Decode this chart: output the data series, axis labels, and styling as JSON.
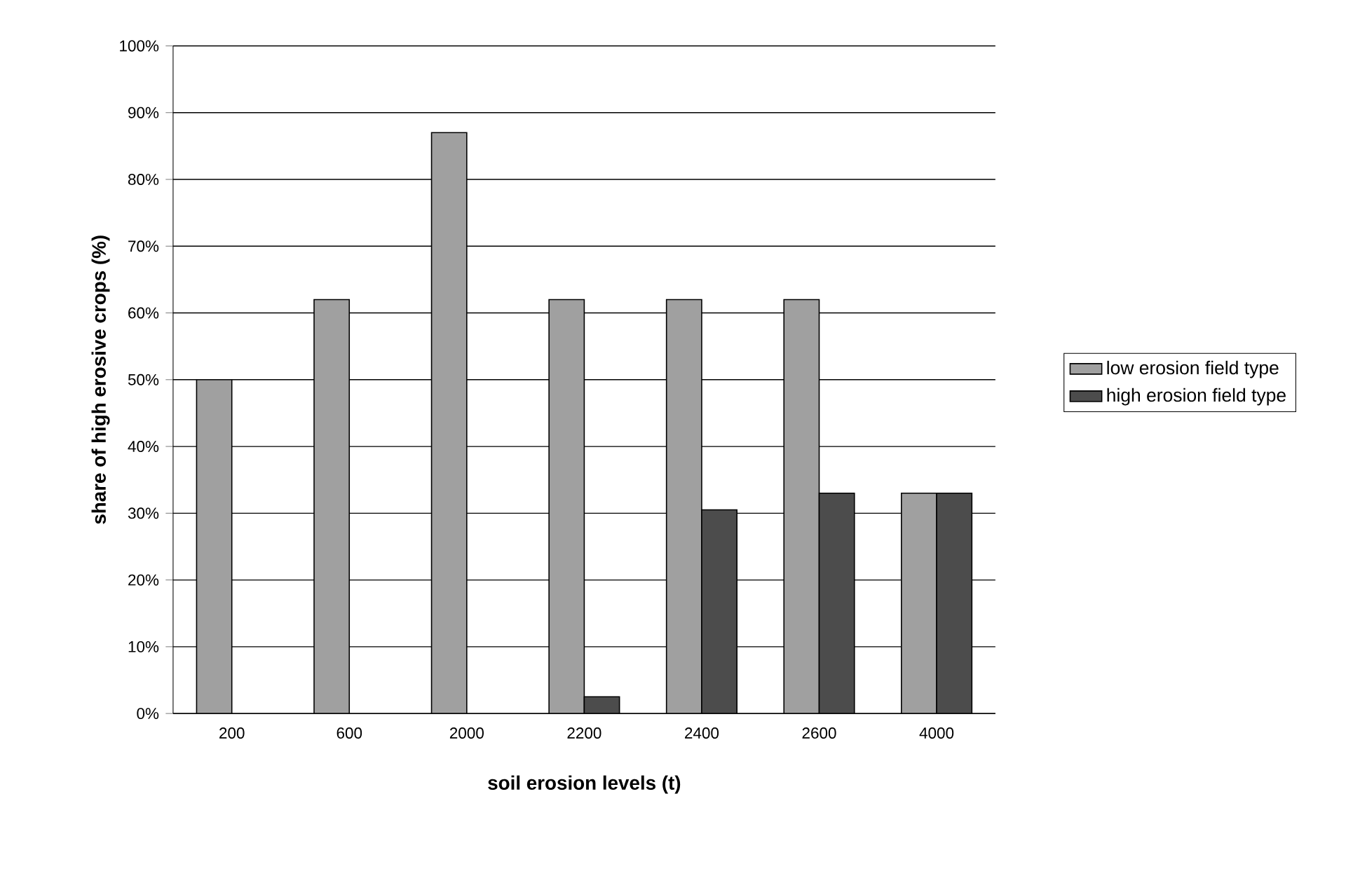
{
  "chart_data": {
    "type": "bar",
    "xlabel": "soil erosion levels (t)",
    "ylabel": "share of high erosive crops (%)",
    "categories": [
      "200",
      "600",
      "2000",
      "2200",
      "2400",
      "2600",
      "4000"
    ],
    "series": [
      {
        "name": "low erosion field type",
        "color": "#a0a0a0",
        "values": [
          50,
          62,
          87,
          62,
          62,
          62,
          33
        ]
      },
      {
        "name": "high erosion field type",
        "color": "#4c4c4c",
        "values": [
          null,
          null,
          null,
          2.5,
          30.5,
          33,
          33
        ]
      }
    ],
    "ylim": [
      0,
      100
    ],
    "yticks": [
      {
        "value": 0,
        "label": "0%"
      },
      {
        "value": 10,
        "label": "10%"
      },
      {
        "value": 20,
        "label": "20%"
      },
      {
        "value": 30,
        "label": "30%"
      },
      {
        "value": 40,
        "label": "40%"
      },
      {
        "value": 50,
        "label": "50%"
      },
      {
        "value": 60,
        "label": "60%"
      },
      {
        "value": 70,
        "label": "70%"
      },
      {
        "value": 80,
        "label": "80%"
      },
      {
        "value": 90,
        "label": "90%"
      },
      {
        "value": 100,
        "label": "100%"
      }
    ],
    "grid": "y",
    "legend": "right"
  }
}
